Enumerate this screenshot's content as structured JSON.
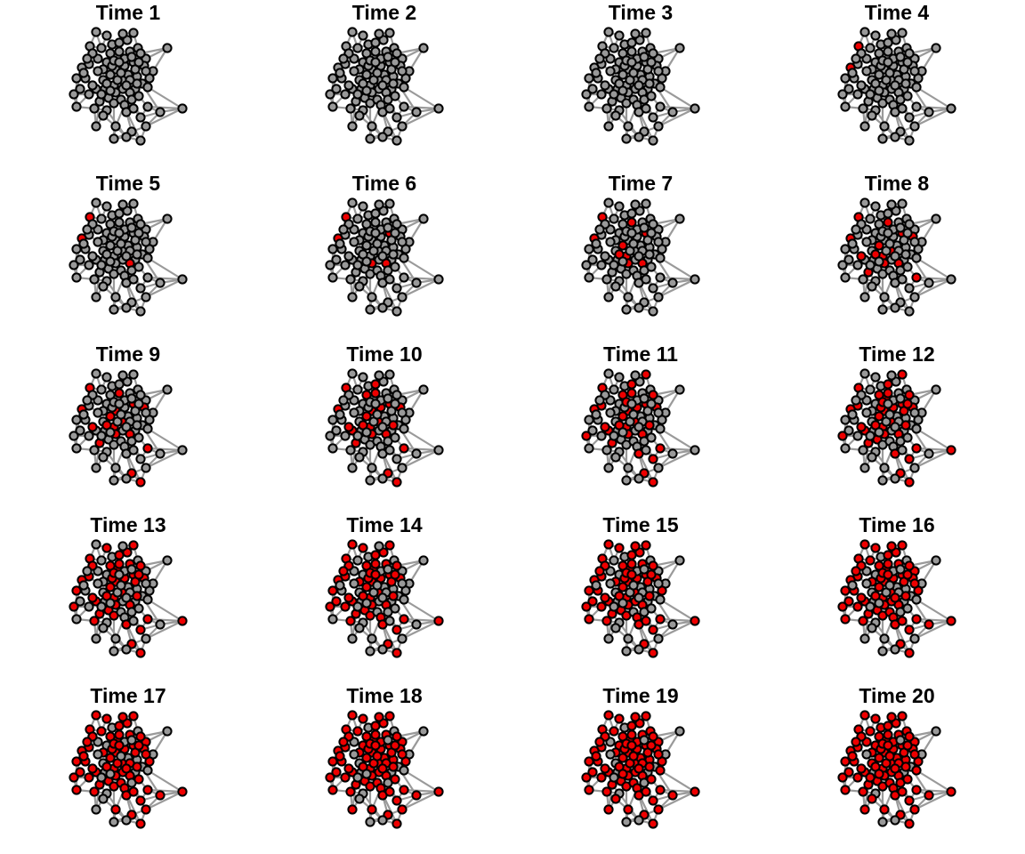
{
  "figure": {
    "panels": [
      {
        "title": "Time 1",
        "infected": []
      },
      {
        "title": "Time 2",
        "infected": []
      },
      {
        "title": "Time 3",
        "infected": []
      },
      {
        "title": "Time 4",
        "infected": [
          3,
          29
        ]
      },
      {
        "title": "Time 5",
        "infected": [
          3,
          29,
          40
        ]
      },
      {
        "title": "Time 6",
        "infected": [
          3,
          29,
          40,
          17,
          42
        ]
      },
      {
        "title": "Time 7",
        "infected": [
          3,
          29,
          40,
          17,
          42,
          64,
          59,
          20,
          33
        ]
      },
      {
        "title": "Time 8",
        "infected": [
          3,
          29,
          40,
          17,
          42,
          64,
          59,
          20,
          33,
          71,
          34,
          16,
          78,
          49
        ]
      },
      {
        "title": "Time 9",
        "infected": [
          3,
          29,
          40,
          17,
          42,
          64,
          59,
          20,
          33,
          71,
          34,
          16,
          78,
          49,
          88,
          89,
          19
        ]
      },
      {
        "title": "Time 10",
        "infected": [
          3,
          29,
          40,
          17,
          42,
          64,
          59,
          20,
          33,
          71,
          34,
          16,
          78,
          49,
          88,
          89,
          19,
          5,
          74,
          22,
          18,
          60
        ]
      },
      {
        "title": "Time 11",
        "infected": [
          3,
          29,
          40,
          17,
          42,
          64,
          59,
          20,
          33,
          71,
          34,
          16,
          78,
          49,
          88,
          89,
          19,
          5,
          74,
          22,
          18,
          60,
          7,
          81,
          61,
          52,
          86,
          67,
          26
        ]
      },
      {
        "title": "Time 12",
        "infected": [
          3,
          29,
          40,
          17,
          42,
          64,
          59,
          20,
          33,
          71,
          34,
          16,
          78,
          49,
          88,
          89,
          19,
          5,
          74,
          22,
          18,
          60,
          7,
          81,
          61,
          52,
          86,
          67,
          26,
          56,
          43,
          10,
          69,
          80,
          57
        ]
      },
      {
        "title": "Time 13",
        "infected": [
          3,
          29,
          40,
          17,
          42,
          64,
          59,
          20,
          33,
          71,
          34,
          16,
          78,
          49,
          88,
          89,
          19,
          5,
          74,
          22,
          18,
          60,
          7,
          81,
          61,
          52,
          86,
          67,
          26,
          56,
          43,
          10,
          69,
          80,
          57,
          6,
          28,
          11,
          1,
          30,
          50,
          44
        ]
      },
      {
        "title": "Time 14",
        "infected": [
          3,
          29,
          40,
          17,
          42,
          64,
          59,
          20,
          33,
          71,
          34,
          16,
          78,
          49,
          88,
          89,
          19,
          5,
          74,
          22,
          18,
          60,
          7,
          81,
          61,
          52,
          86,
          67,
          26,
          56,
          43,
          10,
          69,
          80,
          57,
          6,
          28,
          11,
          1,
          30,
          50,
          44,
          76,
          72,
          48,
          58,
          23,
          0,
          24
        ]
      },
      {
        "title": "Time 15",
        "infected": [
          3,
          29,
          40,
          17,
          42,
          64,
          59,
          20,
          33,
          71,
          34,
          16,
          78,
          49,
          88,
          89,
          19,
          5,
          74,
          22,
          18,
          60,
          7,
          81,
          61,
          52,
          86,
          67,
          26,
          56,
          43,
          10,
          69,
          80,
          57,
          6,
          28,
          11,
          1,
          30,
          50,
          44,
          76,
          72,
          48,
          58,
          23,
          0,
          24,
          8,
          53,
          15,
          82,
          41,
          25
        ]
      },
      {
        "title": "Time 16",
        "infected": [
          3,
          29,
          40,
          17,
          42,
          64,
          59,
          20,
          33,
          71,
          34,
          16,
          78,
          49,
          88,
          89,
          19,
          5,
          74,
          22,
          18,
          60,
          7,
          81,
          61,
          52,
          86,
          67,
          26,
          56,
          43,
          10,
          69,
          80,
          57,
          6,
          28,
          11,
          1,
          30,
          50,
          44,
          76,
          72,
          48,
          58,
          23,
          0,
          24,
          8,
          53,
          15,
          82,
          41,
          25,
          45,
          79,
          65,
          4,
          73,
          13
        ]
      },
      {
        "title": "Time 17",
        "infected": [
          3,
          29,
          40,
          17,
          42,
          64,
          59,
          20,
          33,
          71,
          34,
          16,
          78,
          49,
          88,
          89,
          19,
          5,
          74,
          22,
          18,
          60,
          7,
          81,
          61,
          52,
          86,
          67,
          26,
          56,
          43,
          10,
          69,
          80,
          57,
          6,
          28,
          11,
          1,
          30,
          50,
          44,
          76,
          72,
          48,
          58,
          23,
          0,
          24,
          8,
          53,
          15,
          82,
          41,
          25,
          45,
          79,
          65,
          4,
          73,
          13,
          47,
          55,
          87,
          85,
          54,
          31
        ]
      },
      {
        "title": "Time 18",
        "infected": [
          3,
          29,
          40,
          17,
          42,
          64,
          59,
          20,
          33,
          71,
          34,
          16,
          78,
          49,
          88,
          89,
          19,
          5,
          74,
          22,
          18,
          60,
          7,
          81,
          61,
          52,
          86,
          67,
          26,
          56,
          43,
          10,
          69,
          80,
          57,
          6,
          28,
          11,
          1,
          30,
          50,
          44,
          76,
          72,
          48,
          58,
          23,
          0,
          24,
          8,
          53,
          15,
          82,
          41,
          25,
          45,
          79,
          65,
          4,
          73,
          13,
          47,
          55,
          87,
          85,
          54,
          31,
          36,
          9,
          62,
          83,
          66,
          35
        ]
      },
      {
        "title": "Time 19",
        "infected": [
          3,
          29,
          40,
          17,
          42,
          64,
          59,
          20,
          33,
          71,
          34,
          16,
          78,
          49,
          88,
          89,
          19,
          5,
          74,
          22,
          18,
          60,
          7,
          81,
          61,
          52,
          86,
          67,
          26,
          56,
          43,
          10,
          69,
          80,
          57,
          6,
          28,
          11,
          1,
          30,
          50,
          44,
          76,
          72,
          48,
          58,
          23,
          0,
          24,
          8,
          53,
          15,
          82,
          41,
          25,
          45,
          79,
          65,
          4,
          73,
          13,
          47,
          55,
          87,
          85,
          54,
          31,
          36,
          9,
          62,
          83,
          66,
          35,
          75,
          38,
          12,
          84
        ]
      },
      {
        "title": "Time 20",
        "infected": [
          3,
          29,
          40,
          17,
          42,
          64,
          59,
          20,
          33,
          71,
          34,
          16,
          78,
          49,
          88,
          89,
          19,
          5,
          74,
          22,
          18,
          60,
          7,
          81,
          61,
          52,
          86,
          67,
          26,
          56,
          43,
          10,
          69,
          80,
          57,
          6,
          28,
          11,
          1,
          30,
          50,
          44,
          76,
          72,
          48,
          58,
          23,
          0,
          24,
          8,
          53,
          15,
          82,
          41,
          25,
          45,
          79,
          65,
          4,
          73,
          13,
          47,
          55,
          87,
          85,
          54,
          31,
          36,
          9,
          62,
          83,
          66,
          35,
          75,
          38,
          12,
          84,
          70,
          46,
          21,
          2,
          27
        ]
      }
    ],
    "colors": {
      "susceptible": "#999999",
      "infected": "#ee0000",
      "edge": "#9a9a9a",
      "outline": "#000000",
      "title": "#000000",
      "background": "#ffffff"
    }
  }
}
